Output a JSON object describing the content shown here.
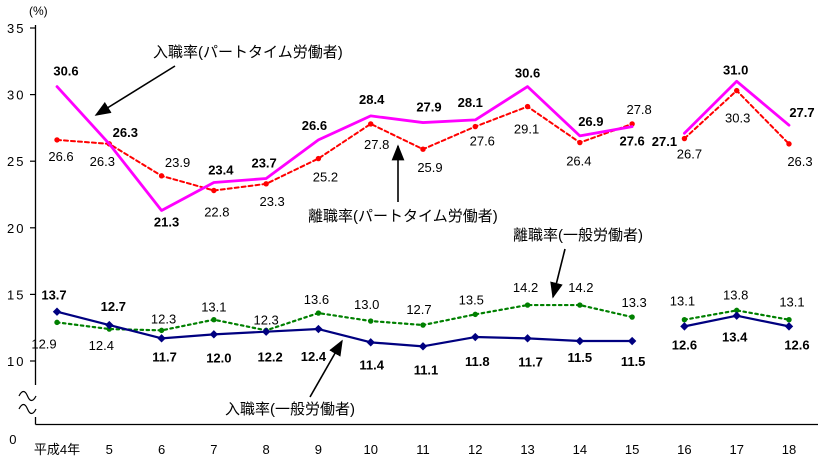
{
  "chart_data": {
    "type": "line",
    "title": "",
    "unit_label": "(%)",
    "xlabel": "",
    "ylabel": "%",
    "ylim": [
      0,
      35
    ],
    "y_ticks": [
      35,
      30,
      25,
      20,
      15,
      10,
      0
    ],
    "axis_break_between": [
      0,
      10
    ],
    "grid": false,
    "legend_position": "inline-annotations",
    "categories": [
      "平成4年",
      "5",
      "6",
      "7",
      "8",
      "9",
      "10",
      "11",
      "12",
      "13",
      "14",
      "15",
      "16",
      "17",
      "18"
    ],
    "data_gap_segments": [
      [
        0,
        11
      ],
      [
        12,
        14
      ]
    ],
    "series": [
      {
        "id": "hire-parttime",
        "name": "入職率(パートタイム労働者)",
        "color": "#ff00ff",
        "line": "solid",
        "marker": "none",
        "bold_labels": true,
        "values": [
          30.6,
          26.3,
          21.3,
          23.4,
          23.7,
          26.6,
          28.4,
          27.9,
          28.1,
          30.6,
          26.9,
          27.6,
          27.1,
          31.0,
          27.7
        ]
      },
      {
        "id": "sep-parttime",
        "name": "離職率(パートタイム労働者)",
        "color": "#ff0000",
        "line": "dashed",
        "marker": "circle",
        "bold_labels": false,
        "values": [
          26.6,
          26.3,
          23.9,
          22.8,
          23.3,
          25.2,
          27.8,
          25.9,
          27.6,
          29.1,
          26.4,
          27.8,
          26.7,
          30.3,
          26.3
        ]
      },
      {
        "id": "sep-general",
        "name": "離職率(一般労働者)",
        "color": "#008000",
        "line": "dashed",
        "marker": "circle",
        "bold_labels": false,
        "values": [
          12.9,
          12.4,
          12.3,
          13.1,
          12.3,
          13.6,
          13.0,
          12.7,
          13.5,
          14.2,
          14.2,
          13.3,
          13.1,
          13.8,
          13.1
        ]
      },
      {
        "id": "hire-general",
        "name": "入職率(一般労働者)",
        "color": "#000080",
        "line": "solid",
        "marker": "diamond",
        "bold_labels": true,
        "values": [
          13.7,
          12.7,
          11.7,
          12.0,
          12.2,
          12.4,
          11.4,
          11.1,
          11.8,
          11.7,
          11.5,
          11.5,
          12.6,
          13.4,
          12.6
        ]
      }
    ],
    "annotations": [
      {
        "label": "入職率(パートタイム労働者)",
        "series_id": "hire-parttime"
      },
      {
        "label": "離職率(パートタイム労働者)",
        "series_id": "sep-parttime"
      },
      {
        "label": "離職率(一般労働者)",
        "series_id": "sep-general"
      },
      {
        "label": "入職率(一般労働者)",
        "series_id": "hire-general"
      }
    ]
  }
}
